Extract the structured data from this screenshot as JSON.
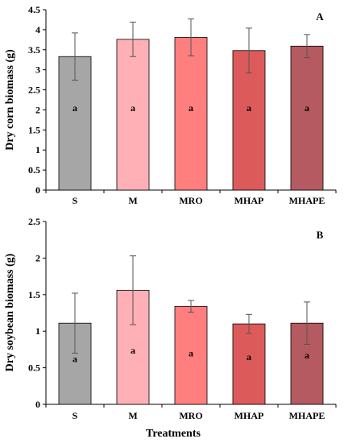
{
  "chart_data": [
    {
      "type": "bar",
      "panel_label": "A",
      "ylabel": "Dry corn  biomass (g)",
      "xlabel": "",
      "ylim": [
        0,
        4.5
      ],
      "yticks": [
        "0",
        "0.5",
        "1",
        "1.5",
        "2",
        "2.5",
        "3",
        "3.5",
        "4",
        "4.5"
      ],
      "categories": [
        "S",
        "M",
        "MRO",
        "MHAP",
        "MHAPE"
      ],
      "values": [
        3.33,
        3.76,
        3.81,
        3.48,
        3.59
      ],
      "errors": [
        0.59,
        0.43,
        0.46,
        0.56,
        0.29
      ],
      "significance": [
        "a",
        "a",
        "a",
        "a",
        "a"
      ],
      "colors": [
        "#a6a6a6",
        "#ffb0b6",
        "#ff7f7f",
        "#dc5a5a",
        "#b45a60"
      ]
    },
    {
      "type": "bar",
      "panel_label": "B",
      "ylabel": "Dry soybean biomass (g)",
      "xlabel": "Treatments",
      "ylim": [
        0,
        2.5
      ],
      "yticks": [
        "0",
        "0.5",
        "1",
        "1.5",
        "2",
        "2.5"
      ],
      "categories": [
        "S",
        "M",
        "MRO",
        "MHAP",
        "MHAPE"
      ],
      "values": [
        1.11,
        1.56,
        1.34,
        1.1,
        1.11
      ],
      "errors": [
        0.41,
        0.47,
        0.08,
        0.13,
        0.29
      ],
      "significance": [
        "a",
        "a",
        "a",
        "a",
        "a"
      ],
      "colors": [
        "#a6a6a6",
        "#ffb0b6",
        "#ff7f7f",
        "#dc5a5a",
        "#b45a60"
      ]
    }
  ]
}
